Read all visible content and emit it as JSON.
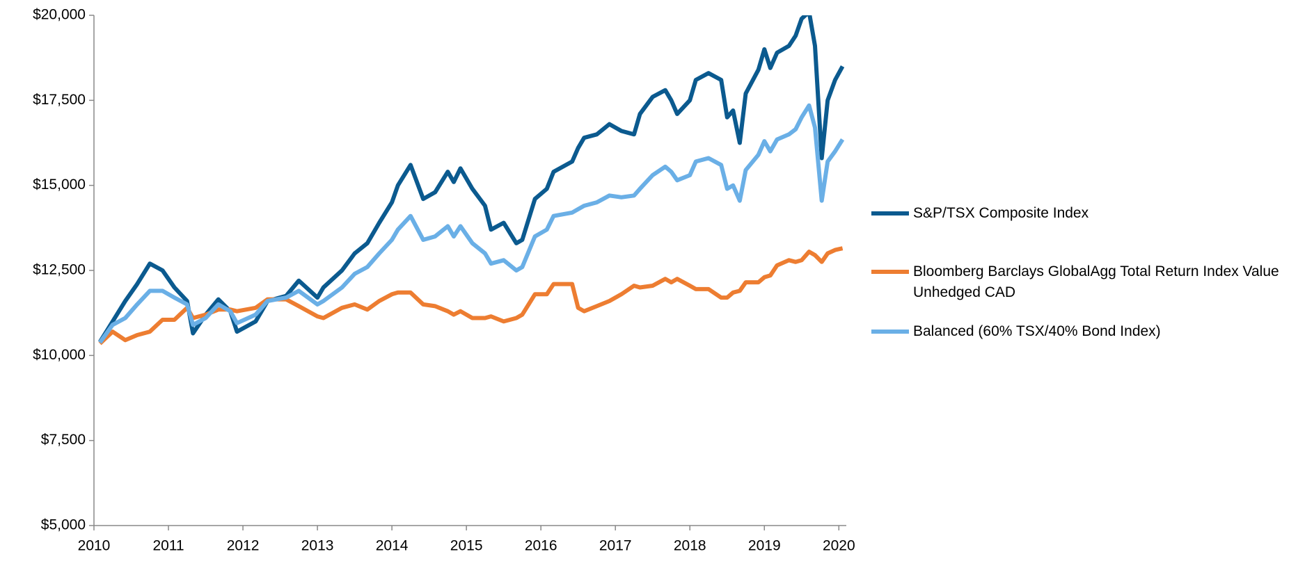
{
  "chart_data": {
    "type": "line",
    "x": [
      2010.08,
      2010.25,
      2010.42,
      2010.58,
      2010.75,
      2010.92,
      2011.08,
      2011.25,
      2011.33,
      2011.5,
      2011.67,
      2011.83,
      2011.92,
      2012.17,
      2012.33,
      2012.58,
      2012.75,
      2013.0,
      2013.08,
      2013.33,
      2013.5,
      2013.67,
      2013.83,
      2014.0,
      2014.08,
      2014.25,
      2014.42,
      2014.58,
      2014.75,
      2014.83,
      2014.92,
      2015.08,
      2015.25,
      2015.33,
      2015.5,
      2015.67,
      2015.75,
      2015.92,
      2016.08,
      2016.17,
      2016.42,
      2016.5,
      2016.58,
      2016.75,
      2016.92,
      2017.08,
      2017.25,
      2017.33,
      2017.5,
      2017.67,
      2017.75,
      2017.83,
      2018.0,
      2018.08,
      2018.25,
      2018.42,
      2018.5,
      2018.58,
      2018.67,
      2018.75,
      2018.92,
      2019.0,
      2019.08,
      2019.17,
      2019.33,
      2019.42,
      2019.5,
      2019.6,
      2019.68,
      2019.77,
      2019.85,
      2019.95,
      2020.05
    ],
    "series": [
      {
        "name": "S&P/TSX Composite Index",
        "color": "#0b5a8f",
        "values": [
          10400,
          11000,
          11600,
          12100,
          12700,
          12500,
          12000,
          11600,
          10650,
          11200,
          11650,
          11300,
          10700,
          11000,
          11600,
          11750,
          12200,
          11700,
          12000,
          12500,
          13000,
          13300,
          13900,
          14500,
          15000,
          15600,
          14600,
          14800,
          15400,
          15100,
          15500,
          14900,
          14400,
          13700,
          13900,
          13300,
          13400,
          14600,
          14900,
          15400,
          15700,
          16100,
          16400,
          16500,
          16800,
          16600,
          16500,
          17100,
          17600,
          17800,
          17500,
          17100,
          17500,
          18100,
          18300,
          18100,
          17000,
          17200,
          16250,
          17700,
          18400,
          19000,
          18450,
          18900,
          19100,
          19400,
          19900,
          20100,
          19100,
          15800,
          17500,
          18100,
          18500
        ]
      },
      {
        "name": "Bloomberg Barclays GlobalAgg Total Return Index Value Unhedged CAD",
        "color": "#ed7d31",
        "values": [
          10350,
          10700,
          10450,
          10600,
          10700,
          11050,
          11050,
          11400,
          11100,
          11200,
          11350,
          11350,
          11300,
          11400,
          11650,
          11650,
          11450,
          11150,
          11100,
          11400,
          11500,
          11350,
          11600,
          11800,
          11850,
          11850,
          11500,
          11450,
          11300,
          11200,
          11300,
          11100,
          11100,
          11150,
          11000,
          11100,
          11200,
          11800,
          11800,
          12100,
          12100,
          11400,
          11300,
          11450,
          11600,
          11800,
          12050,
          12000,
          12050,
          12250,
          12150,
          12250,
          12050,
          11950,
          11950,
          11700,
          11700,
          11850,
          11900,
          12150,
          12150,
          12300,
          12350,
          12650,
          12800,
          12750,
          12800,
          13050,
          12950,
          12750,
          13000,
          13100,
          13150
        ]
      },
      {
        "name": "Balanced (60% TSX/40% Bond Index)",
        "color": "#6aafe6",
        "values": [
          10380,
          10900,
          11100,
          11500,
          11900,
          11900,
          11700,
          11500,
          10900,
          11100,
          11500,
          11300,
          10950,
          11200,
          11600,
          11700,
          11900,
          11500,
          11600,
          12000,
          12400,
          12600,
          13000,
          13400,
          13700,
          14100,
          13400,
          13500,
          13800,
          13500,
          13800,
          13300,
          13000,
          12700,
          12800,
          12500,
          12600,
          13500,
          13700,
          14100,
          14200,
          14300,
          14400,
          14500,
          14700,
          14650,
          14700,
          14900,
          15300,
          15550,
          15400,
          15150,
          15300,
          15700,
          15800,
          15600,
          14900,
          15000,
          14550,
          15450,
          15900,
          16300,
          16000,
          16350,
          16500,
          16650,
          17000,
          17350,
          16700,
          14550,
          15700,
          16000,
          16350
        ]
      }
    ],
    "xlim": [
      2010,
      2020.1
    ],
    "ylim": [
      5000,
      20000
    ],
    "xticks": [
      2010,
      2011,
      2012,
      2013,
      2014,
      2015,
      2016,
      2017,
      2018,
      2019,
      2020
    ],
    "yticks": [
      {
        "value": 5000,
        "label": "$5,000"
      },
      {
        "value": 7500,
        "label": "$7,500"
      },
      {
        "value": 10000,
        "label": "$10,000"
      },
      {
        "value": 12500,
        "label": "$12,500"
      },
      {
        "value": 15000,
        "label": "$15,000"
      },
      {
        "value": 17500,
        "label": "$17,500"
      },
      {
        "value": 20000,
        "label": "$20,000"
      }
    ],
    "legend": "right"
  }
}
